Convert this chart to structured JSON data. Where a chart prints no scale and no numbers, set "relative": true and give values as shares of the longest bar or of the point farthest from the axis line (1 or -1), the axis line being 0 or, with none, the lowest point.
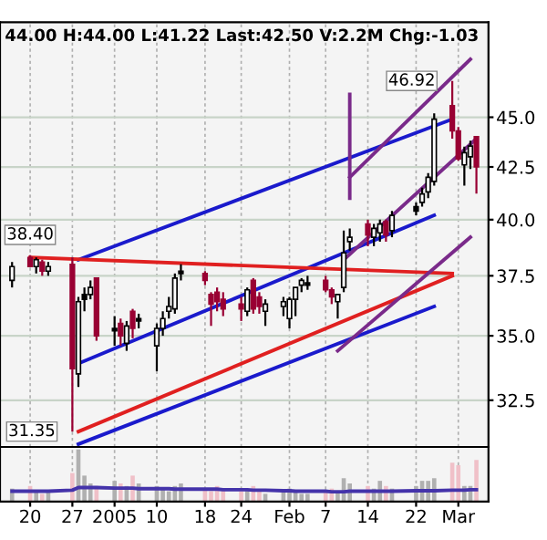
{
  "chart_data": [
    {
      "type": "candlestick",
      "title": "44.00 H:44.00 L:41.22 Last:42.50 V:2.2M Chg:-1.03",
      "x": [
        "2004-12-17",
        "2004-12-20",
        "2004-12-21",
        "2004-12-22",
        "2004-12-23",
        "2004-12-27",
        "2004-12-28",
        "2004-12-29",
        "2004-12-30",
        "2004-12-31",
        "2005-01-03",
        "2005-01-04",
        "2005-01-05",
        "2005-01-06",
        "2005-01-07",
        "2005-01-10",
        "2005-01-11",
        "2005-01-12",
        "2005-01-13",
        "2005-01-14",
        "2005-01-18",
        "2005-01-19",
        "2005-01-20",
        "2005-01-21",
        "2005-01-24",
        "2005-01-25",
        "2005-01-26",
        "2005-01-27",
        "2005-01-28",
        "2005-01-31",
        "2005-02-01",
        "2005-02-02",
        "2005-02-03",
        "2005-02-04",
        "2005-02-07",
        "2005-02-08",
        "2005-02-09",
        "2005-02-10",
        "2005-02-11",
        "2005-02-14",
        "2005-02-15",
        "2005-02-16",
        "2005-02-17",
        "2005-02-18",
        "2005-02-22",
        "2005-02-23",
        "2005-02-24",
        "2005-02-25",
        "2005-02-28",
        "2005-03-01",
        "2005-03-02",
        "2005-03-03",
        "2005-03-04"
      ],
      "ohlc": [
        [
          37.3,
          38.1,
          37.0,
          37.9
        ],
        [
          38.3,
          38.4,
          37.9,
          37.9
        ],
        [
          37.9,
          38.3,
          37.6,
          38.2
        ],
        [
          38.1,
          38.2,
          37.5,
          37.7
        ],
        [
          37.7,
          38.1,
          37.5,
          37.9
        ],
        [
          38.0,
          38.3,
          31.35,
          33.7
        ],
        [
          33.5,
          36.6,
          33.0,
          36.4
        ],
        [
          36.7,
          37.0,
          36.0,
          36.5
        ],
        [
          36.7,
          37.3,
          36.5,
          37.0
        ],
        [
          37.4,
          37.4,
          34.8,
          35.0
        ],
        [
          35.3,
          35.8,
          34.6,
          35.2
        ],
        [
          35.5,
          35.7,
          34.6,
          35.0
        ],
        [
          34.7,
          35.6,
          34.4,
          35.4
        ],
        [
          36.0,
          36.1,
          34.9,
          35.3
        ],
        [
          35.7,
          35.9,
          35.3,
          35.6
        ],
        [
          34.6,
          35.5,
          33.6,
          35.3
        ],
        [
          35.3,
          36.0,
          35.0,
          35.7
        ],
        [
          36.0,
          36.6,
          35.7,
          36.2
        ],
        [
          36.1,
          37.6,
          35.9,
          37.4
        ],
        [
          37.7,
          38.0,
          37.3,
          37.6
        ],
        [
          37.6,
          37.7,
          37.1,
          37.3
        ],
        [
          36.7,
          36.8,
          35.4,
          36.3
        ],
        [
          36.8,
          37.0,
          36.0,
          36.4
        ],
        [
          36.5,
          36.8,
          35.8,
          36.1
        ],
        [
          36.3,
          36.6,
          35.6,
          36.1
        ],
        [
          36.0,
          37.0,
          35.8,
          36.9
        ],
        [
          37.3,
          37.4,
          35.9,
          36.1
        ],
        [
          36.6,
          36.8,
          35.9,
          36.2
        ],
        [
          36.0,
          36.5,
          35.4,
          36.3
        ],
        [
          36.2,
          36.6,
          35.8,
          36.4
        ],
        [
          35.7,
          36.6,
          35.3,
          36.5
        ],
        [
          36.5,
          37.0,
          35.8,
          37.0
        ],
        [
          37.1,
          37.4,
          36.8,
          37.3
        ],
        [
          37.2,
          37.5,
          36.9,
          37.1
        ],
        [
          37.3,
          37.5,
          36.8,
          36.9
        ],
        [
          36.9,
          37.0,
          36.3,
          36.6
        ],
        [
          36.4,
          36.7,
          35.7,
          36.7
        ],
        [
          37.0,
          39.5,
          36.8,
          38.5
        ],
        [
          39.0,
          39.6,
          38.6,
          39.2
        ],
        [
          39.8,
          40.0,
          38.8,
          39.3
        ],
        [
          39.2,
          39.8,
          38.8,
          39.6
        ],
        [
          39.4,
          40.0,
          39.0,
          39.8
        ],
        [
          39.9,
          40.0,
          39.0,
          39.3
        ],
        [
          39.5,
          40.4,
          39.2,
          40.2
        ],
        [
          40.6,
          40.8,
          40.2,
          40.4
        ],
        [
          40.8,
          41.5,
          40.6,
          41.2
        ],
        [
          41.3,
          42.2,
          41.0,
          42.0
        ],
        [
          41.8,
          45.2,
          41.6,
          44.9
        ],
        [
          45.6,
          46.92,
          43.9,
          44.3
        ],
        [
          44.3,
          44.5,
          42.8,
          42.9
        ],
        [
          42.6,
          43.5,
          41.6,
          43.2
        ],
        [
          43.0,
          43.8,
          42.4,
          43.53
        ],
        [
          44.0,
          44.0,
          41.22,
          42.5
        ]
      ],
      "colors": [
        "#000000",
        "#990033",
        "#000000",
        "#990033",
        "#000000",
        "#990033",
        "#000000",
        "#000000",
        "#000000",
        "#990033",
        "#000000",
        "#990033",
        "#000000",
        "#990033",
        "#000000",
        "#000000",
        "#000000",
        "#000000",
        "#000000",
        "#000000",
        "#990033",
        "#990033",
        "#990033",
        "#990033",
        "#990033",
        "#000000",
        "#990033",
        "#990033",
        "#000000",
        "#000000",
        "#000000",
        "#000000",
        "#000000",
        "#000000",
        "#990033",
        "#990033",
        "#000000",
        "#000000",
        "#000000",
        "#990033",
        "#000000",
        "#000000",
        "#990033",
        "#000000",
        "#000000",
        "#000000",
        "#000000",
        "#000000",
        "#990033",
        "#990033",
        "#000000",
        "#000000",
        "#990033"
      ],
      "series": [
        {
          "type": "line",
          "color": "#1a1acc",
          "x": [
            "2004-12-28",
            "2005-02-28"
          ],
          "values": [
            38.2,
            44.9
          ]
        },
        {
          "type": "line",
          "color": "#1a1acc",
          "x": [
            "2004-12-28",
            "2005-02-25"
          ],
          "values": [
            33.9,
            40.2
          ]
        },
        {
          "type": "line",
          "color": "#1a1acc",
          "x": [
            "2004-12-28",
            "2005-02-25"
          ],
          "values": [
            30.9,
            36.2
          ]
        },
        {
          "type": "line",
          "color": "#e02020",
          "x": [
            "2004-12-20",
            "2005-02-28"
          ],
          "values": [
            38.3,
            37.6
          ]
        },
        {
          "type": "line",
          "color": "#e02020",
          "x": [
            "2004-12-28",
            "2005-02-28"
          ],
          "values": [
            31.35,
            37.5
          ]
        },
        {
          "type": "line",
          "color": "#7a2a8a",
          "x": [
            "2005-02-11",
            "2005-03-03"
          ],
          "values": [
            42.0,
            48.1
          ]
        },
        {
          "type": "line",
          "color": "#7a2a8a",
          "x": [
            "2005-02-10",
            "2005-03-04"
          ],
          "values": [
            38.2,
            43.9
          ]
        },
        {
          "type": "line",
          "color": "#7a2a8a",
          "x": [
            "2005-02-09",
            "2005-03-03"
          ],
          "values": [
            34.4,
            39.2
          ]
        },
        {
          "type": "line",
          "color": "#7a2a8a",
          "x": [
            "2005-02-11",
            "2005-02-11"
          ],
          "values": [
            46.2,
            41.0
          ]
        }
      ],
      "annotations": [
        {
          "text": "46.92",
          "x": "2005-02-28",
          "y": 46.92
        },
        {
          "text": "31.35",
          "x": "2004-12-27",
          "y": 31.35
        },
        {
          "text": "38.40",
          "x": "2004-12-20",
          "y": 38.4
        }
      ],
      "xlim": [
        "2004-12-15",
        "2005-03-06"
      ],
      "ylim": [
        30.8,
        50.2
      ],
      "log": true,
      "grid": true,
      "tick_labels": "y",
      "yticks": [
        {
          "value": 32.5,
          "label": "32.5"
        },
        {
          "value": 35.0,
          "label": "35.0"
        },
        {
          "value": 37.5,
          "label": "37.5"
        },
        {
          "value": 40.0,
          "label": "40.0"
        },
        {
          "value": 42.5,
          "label": "42.5"
        },
        {
          "value": 45.0,
          "label": "45.0"
        }
      ],
      "xticks": [
        {
          "value": "2004-12-20",
          "label": null
        },
        {
          "value": "2004-12-27",
          "label": null
        },
        {
          "value": "2005-01-03",
          "label": null
        },
        {
          "value": "2005-01-10",
          "label": null
        },
        {
          "value": "2005-01-18",
          "label": null
        },
        {
          "value": "2005-01-24",
          "label": null
        },
        {
          "value": "2005-02-01",
          "label": null
        },
        {
          "value": "2005-02-07",
          "label": null
        },
        {
          "value": "2005-02-14",
          "label": null
        },
        {
          "value": "2005-02-22",
          "label": null
        },
        {
          "value": "2005-03-01",
          "label": null
        }
      ]
    },
    {
      "type": "bar",
      "relative": true,
      "grid": "x",
      "x": [
        "2004-12-17",
        "2004-12-20",
        "2004-12-21",
        "2004-12-22",
        "2004-12-23",
        "2004-12-27",
        "2004-12-28",
        "2004-12-29",
        "2004-12-30",
        "2004-12-31",
        "2005-01-03",
        "2005-01-04",
        "2005-01-05",
        "2005-01-06",
        "2005-01-07",
        "2005-01-10",
        "2005-01-11",
        "2005-01-12",
        "2005-01-13",
        "2005-01-14",
        "2005-01-18",
        "2005-01-19",
        "2005-01-20",
        "2005-01-21",
        "2005-01-24",
        "2005-01-25",
        "2005-01-26",
        "2005-01-27",
        "2005-01-28",
        "2005-01-31",
        "2005-02-01",
        "2005-02-02",
        "2005-02-03",
        "2005-02-04",
        "2005-02-07",
        "2005-02-08",
        "2005-02-09",
        "2005-02-10",
        "2005-02-11",
        "2005-02-14",
        "2005-02-15",
        "2005-02-16",
        "2005-02-17",
        "2005-02-18",
        "2005-02-22",
        "2005-02-23",
        "2005-02-24",
        "2005-02-25",
        "2005-02-28",
        "2005-03-01",
        "2005-03-02",
        "2005-03-03",
        "2005-03-04"
      ],
      "xlim": [
        "2004-12-15",
        "2005-03-06"
      ],
      "xticks": [
        {
          "value": "2004-12-20",
          "label": "20"
        },
        {
          "value": "2004-12-27",
          "label": "27"
        },
        {
          "value": "2005-01-03",
          "label": "2005"
        },
        {
          "value": "2005-01-10",
          "label": "10"
        },
        {
          "value": "2005-01-18",
          "label": "18"
        },
        {
          "value": "2005-01-24",
          "label": "24"
        },
        {
          "value": "2005-02-01",
          "label": "Feb"
        },
        {
          "value": "2005-02-07",
          "label": "7"
        },
        {
          "value": "2005-02-14",
          "label": "14"
        },
        {
          "value": "2005-02-22",
          "label": "22"
        },
        {
          "value": "2005-03-01",
          "label": "Mar"
        }
      ],
      "values": [
        0.25,
        0.3,
        0.2,
        0.15,
        0.2,
        0.55,
        1.0,
        0.5,
        0.35,
        0.3,
        0.4,
        0.35,
        0.3,
        0.5,
        0.35,
        0.3,
        0.25,
        0.2,
        0.3,
        0.35,
        0.25,
        0.2,
        0.3,
        0.25,
        0.2,
        0.25,
        0.3,
        0.2,
        0.15,
        0.2,
        0.25,
        0.2,
        0.15,
        0.15,
        0.2,
        0.25,
        0.2,
        0.45,
        0.35,
        0.3,
        0.25,
        0.4,
        0.3,
        0.25,
        0.3,
        0.4,
        0.4,
        0.45,
        0.75,
        0.7,
        0.3,
        0.3,
        0.8
      ],
      "colors": [
        "#b0b0b0",
        "#f0c0c8",
        "#b0b0b0",
        "#f0c0c8",
        "#b0b0b0",
        "#f0c0c8",
        "#b0b0b0",
        "#b0b0b0",
        "#b0b0b0",
        "#f0c0c8",
        "#b0b0b0",
        "#f0c0c8",
        "#b0b0b0",
        "#f0c0c8",
        "#b0b0b0",
        "#b0b0b0",
        "#b0b0b0",
        "#b0b0b0",
        "#b0b0b0",
        "#b0b0b0",
        "#f0c0c8",
        "#f0c0c8",
        "#f0c0c8",
        "#f0c0c8",
        "#f0c0c8",
        "#b0b0b0",
        "#f0c0c8",
        "#f0c0c8",
        "#b0b0b0",
        "#b0b0b0",
        "#b0b0b0",
        "#b0b0b0",
        "#b0b0b0",
        "#b0b0b0",
        "#f0c0c8",
        "#f0c0c8",
        "#b0b0b0",
        "#b0b0b0",
        "#b0b0b0",
        "#f0c0c8",
        "#b0b0b0",
        "#b0b0b0",
        "#f0c0c8",
        "#b0b0b0",
        "#b0b0b0",
        "#b0b0b0",
        "#b0b0b0",
        "#b0b0b0",
        "#f0c0c8",
        "#f0c0c8",
        "#b0b0b0",
        "#b0b0b0",
        "#f0c0c8"
      ],
      "series": [
        {
          "type": "line",
          "color": "#4433aa",
          "values": [
            0.2,
            0.2,
            0.2,
            0.2,
            0.2,
            0.22,
            0.27,
            0.27,
            0.27,
            0.27,
            0.26,
            0.26,
            0.26,
            0.26,
            0.25,
            0.25,
            0.25,
            0.25,
            0.24,
            0.24,
            0.24,
            0.24,
            0.24,
            0.23,
            0.23,
            0.23,
            0.22,
            0.22,
            0.22,
            0.21,
            0.21,
            0.2,
            0.2,
            0.2,
            0.2,
            0.19,
            0.19,
            0.19,
            0.2,
            0.2,
            0.2,
            0.2,
            0.2,
            0.2,
            0.21,
            0.21,
            0.21,
            0.21,
            0.22,
            0.22,
            0.22,
            0.23,
            0.23
          ]
        }
      ]
    }
  ]
}
